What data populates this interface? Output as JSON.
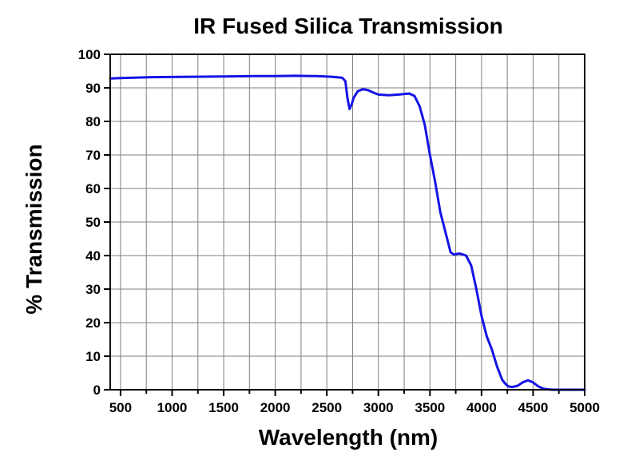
{
  "chart_data": {
    "type": "line",
    "title": "IR Fused Silica Transmission",
    "xlabel": "Wavelength (nm)",
    "ylabel": "% Transmission",
    "xlim": [
      400,
      5000
    ],
    "ylim": [
      0,
      100
    ],
    "x_ticks": [
      500,
      1000,
      1500,
      2000,
      2500,
      3000,
      3500,
      4000,
      4500,
      5000
    ],
    "x_tick_labels": [
      "500",
      "1000",
      "1500",
      "2000",
      "2500",
      "3000",
      "3500",
      "4000",
      "4500",
      "5000"
    ],
    "y_ticks": [
      0,
      10,
      20,
      30,
      40,
      50,
      60,
      70,
      80,
      90,
      100
    ],
    "y_tick_labels": [
      "0",
      "10",
      "20",
      "30",
      "40",
      "50",
      "60",
      "70",
      "80",
      "90",
      "100"
    ],
    "x_minor_step": 250,
    "grid": true,
    "legend": "none",
    "series": [
      {
        "color": "#1414e6",
        "x": [
          400,
          500,
          800,
          1200,
          1500,
          1800,
          2000,
          2200,
          2400,
          2550,
          2650,
          2680,
          2700,
          2720,
          2740,
          2760,
          2800,
          2850,
          2900,
          2950,
          3000,
          3100,
          3200,
          3250,
          3300,
          3350,
          3400,
          3450,
          3500,
          3550,
          3600,
          3650,
          3700,
          3730,
          3750,
          3780,
          3800,
          3850,
          3900,
          3950,
          4000,
          4050,
          4100,
          4150,
          4200,
          4230,
          4260,
          4300,
          4350,
          4400,
          4450,
          4500,
          4550,
          4600,
          4650,
          4700,
          4750,
          4800,
          5000
        ],
        "y": [
          92.8,
          92.9,
          93.2,
          93.3,
          93.4,
          93.5,
          93.5,
          93.6,
          93.5,
          93.3,
          93.0,
          92.0,
          87.0,
          83.7,
          85.0,
          87.0,
          89.0,
          89.6,
          89.3,
          88.6,
          88.0,
          87.8,
          88.0,
          88.2,
          88.3,
          87.6,
          84.5,
          79.0,
          70.0,
          62.0,
          53.0,
          47.0,
          41.0,
          40.3,
          40.4,
          40.6,
          40.5,
          40.0,
          37.0,
          30.0,
          22.0,
          16.0,
          12.0,
          7.0,
          3.0,
          1.8,
          1.0,
          0.8,
          1.2,
          2.2,
          2.8,
          2.2,
          1.0,
          0.3,
          0.1,
          0.0,
          0.0,
          0.0,
          0.0
        ]
      }
    ]
  }
}
